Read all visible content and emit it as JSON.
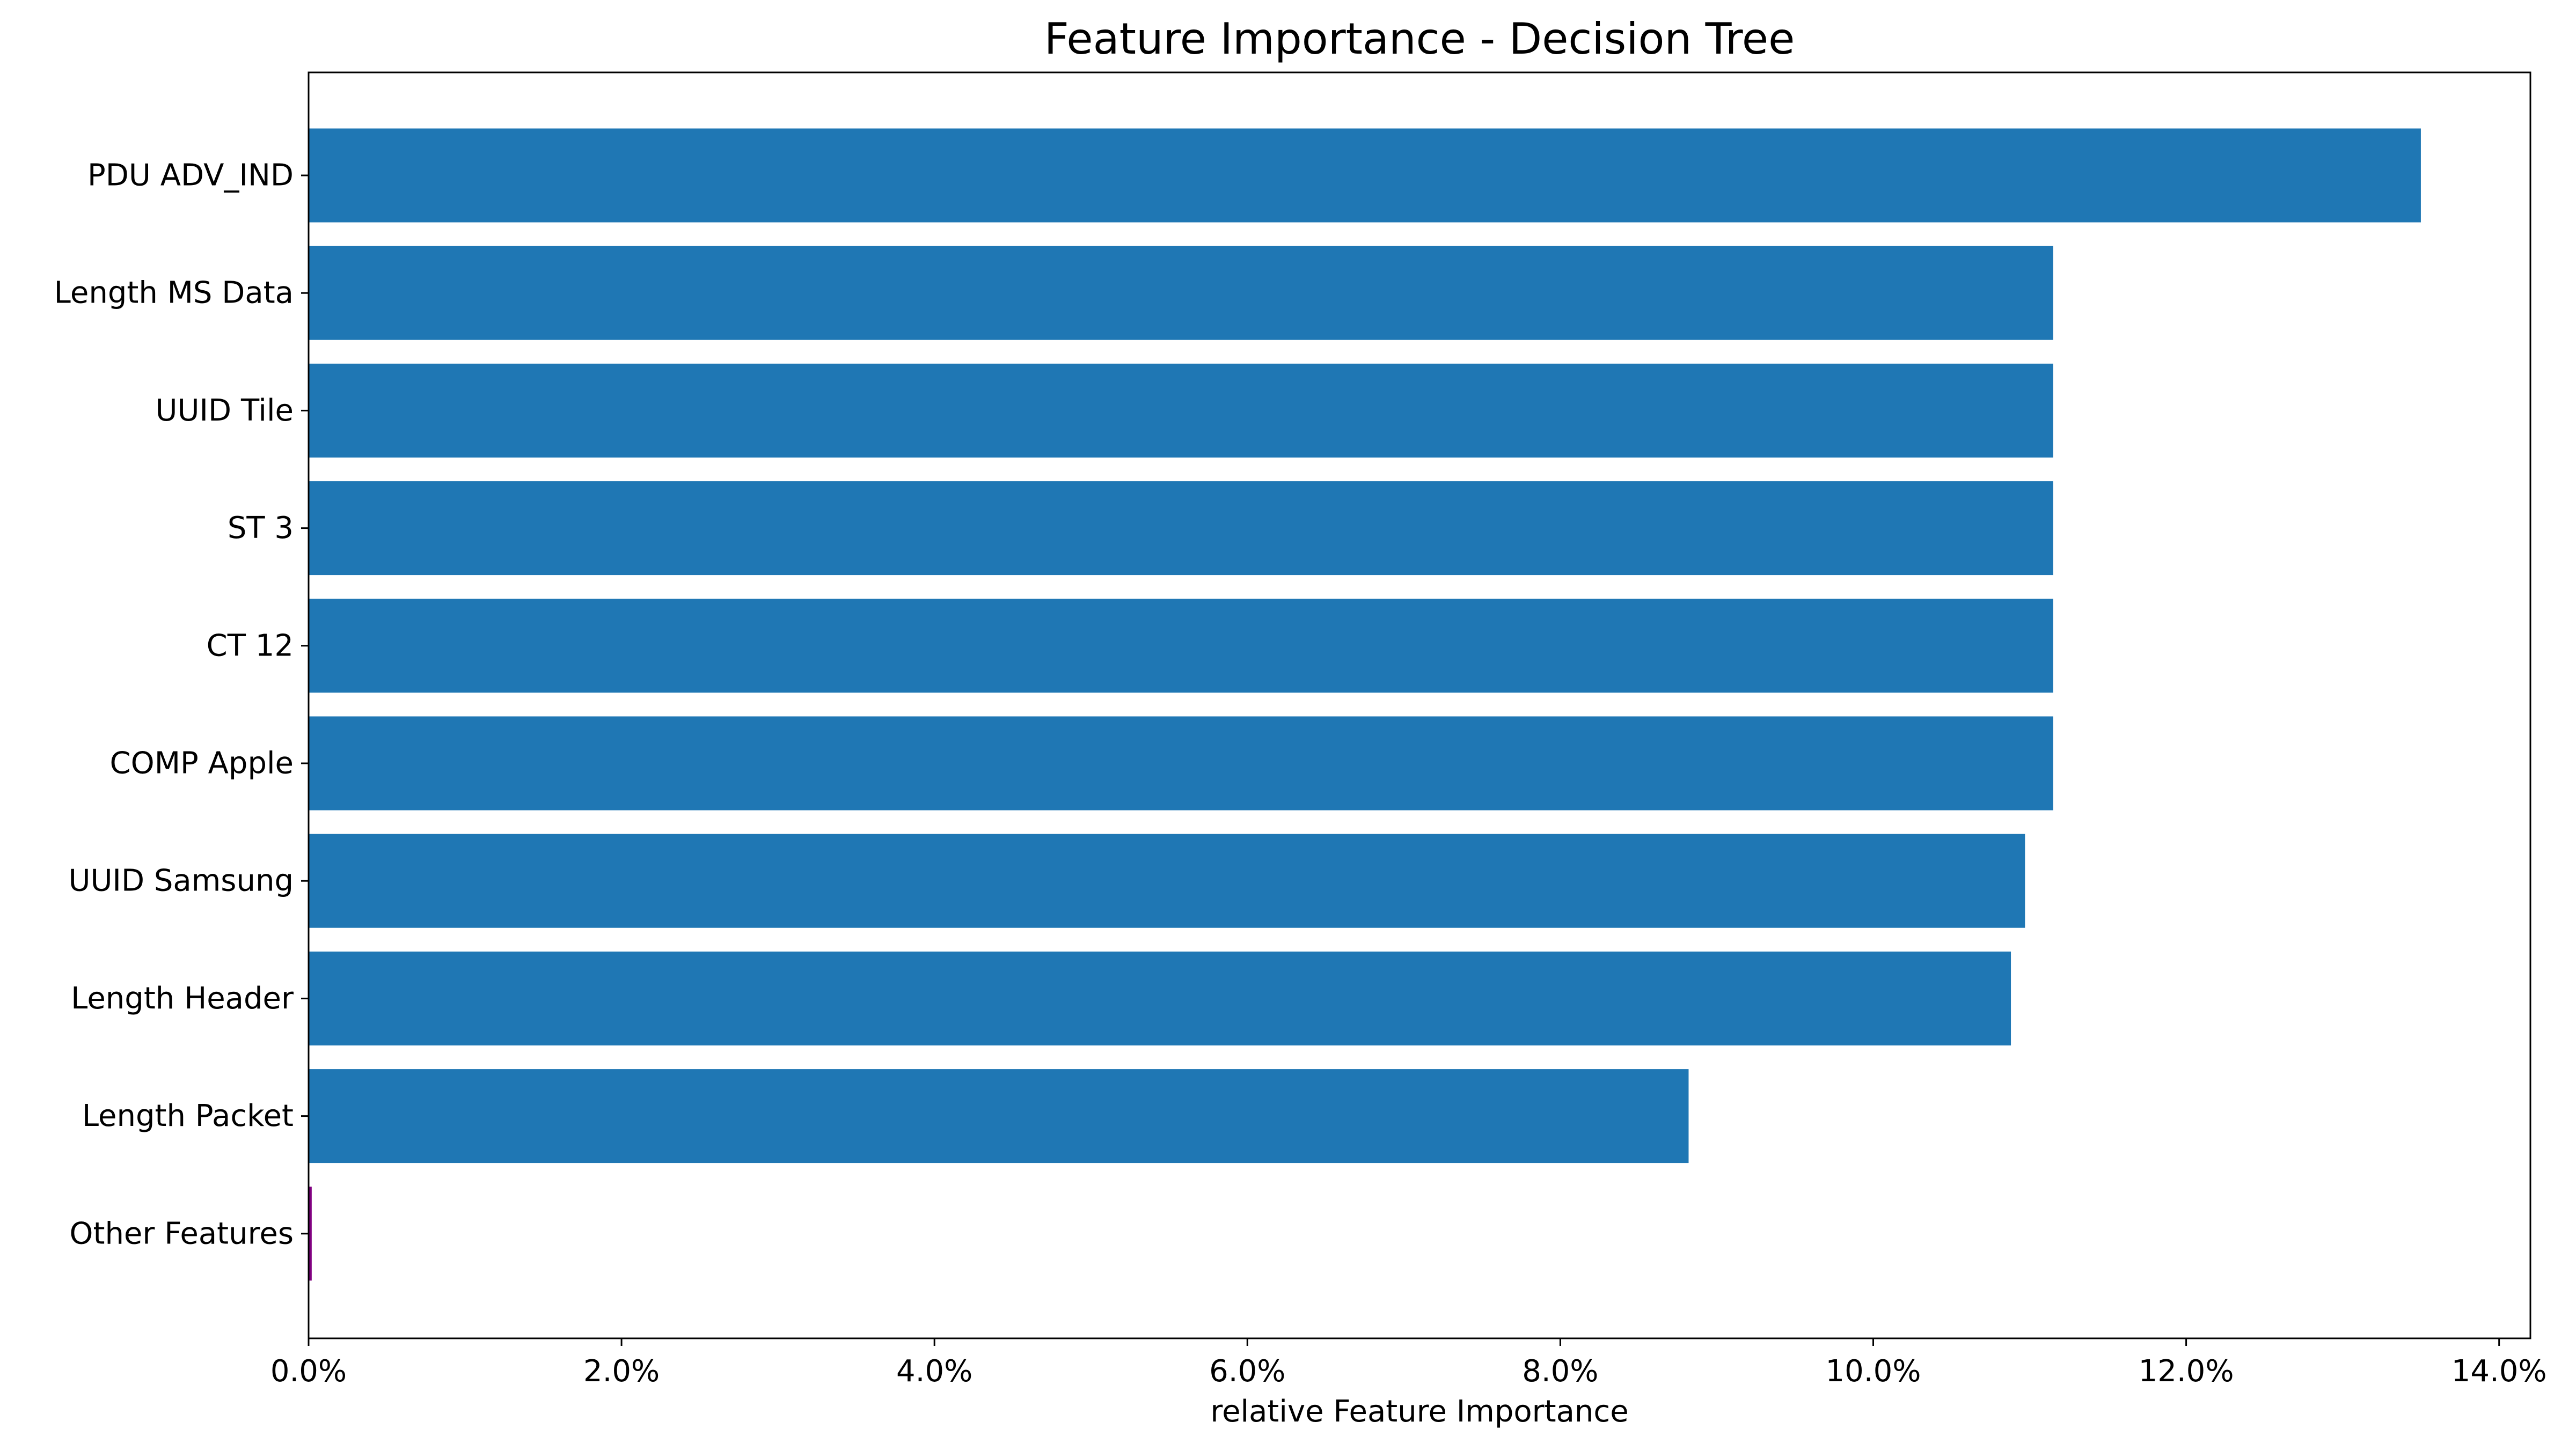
{
  "chart_data": {
    "type": "bar",
    "orientation": "horizontal",
    "title": "Feature Importance - Decision Tree",
    "xlabel": "relative Feature Importance",
    "ylabel": "",
    "categories": [
      "PDU ADV_IND",
      "Length MS Data",
      "UUID Tile",
      "ST 3",
      "CT 12",
      "COMP Apple",
      "UUID Samsung",
      "Length Header",
      "Length Packet",
      "Other Features"
    ],
    "values": [
      13.5,
      11.15,
      11.15,
      11.15,
      11.15,
      11.15,
      10.97,
      10.88,
      8.82,
      0.02
    ],
    "bar_colors": [
      "#1f77b4",
      "#1f77b4",
      "#1f77b4",
      "#1f77b4",
      "#1f77b4",
      "#1f77b4",
      "#1f77b4",
      "#1f77b4",
      "#1f77b4",
      "#800080"
    ],
    "xlim": [
      0,
      14.2
    ],
    "xticks": [
      0,
      2,
      4,
      6,
      8,
      10,
      12,
      14
    ],
    "xtick_labels": [
      "0.0%",
      "2.0%",
      "4.0%",
      "6.0%",
      "8.0%",
      "10.0%",
      "12.0%",
      "14.0%"
    ],
    "grid": false,
    "legend": "none"
  }
}
